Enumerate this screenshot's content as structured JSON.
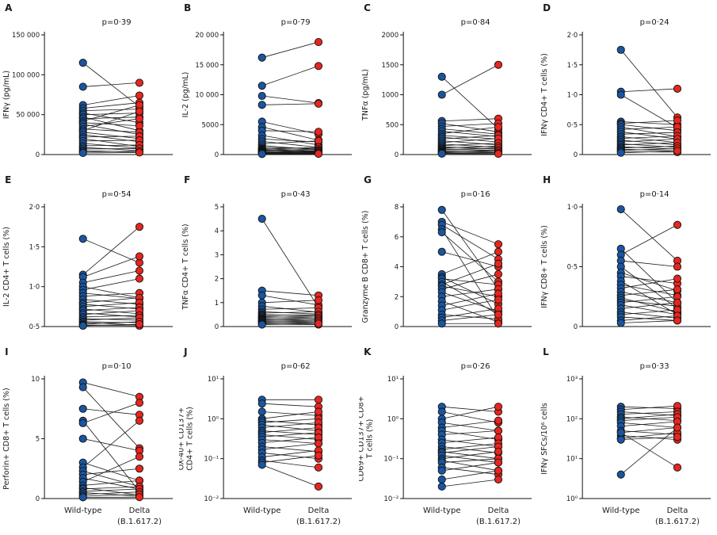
{
  "figure": {
    "x_labels": [
      "Wild-type",
      "Delta"
    ],
    "x_sublabel": "(B.1.617.2)",
    "pair_order": [
      "Wild-type",
      "Delta (B.1.617.2)"
    ],
    "colors": {
      "wildtype": "#1a56a0",
      "delta": "#e6261f",
      "line": "#1a1a1a",
      "axis": "#111111"
    }
  },
  "chart_data": [
    {
      "id": "A",
      "type": "scatter",
      "p_value": "p=0·39",
      "ylabel": "IFNγ (pg/mL)",
      "scale": "linear",
      "ylim": [
        0,
        150000
      ],
      "yticks": [
        0,
        50000,
        100000,
        150000
      ],
      "ytick_labels": [
        "0",
        "50 000",
        "100 000",
        "150 000"
      ],
      "bottom_labels": false,
      "pairs": [
        [
          115000,
          60000
        ],
        [
          85000,
          90000
        ],
        [
          62000,
          74000
        ],
        [
          58000,
          65000
        ],
        [
          55000,
          57000
        ],
        [
          52000,
          40000
        ],
        [
          50000,
          52000
        ],
        [
          47000,
          30000
        ],
        [
          45000,
          47000
        ],
        [
          42000,
          62000
        ],
        [
          40000,
          36000
        ],
        [
          38000,
          25000
        ],
        [
          35000,
          45000
        ],
        [
          32000,
          28000
        ],
        [
          30000,
          54000
        ],
        [
          28000,
          20000
        ],
        [
          25000,
          16000
        ],
        [
          22000,
          23000
        ],
        [
          20000,
          10000
        ],
        [
          17000,
          18000
        ],
        [
          14000,
          8000
        ],
        [
          11000,
          12000
        ],
        [
          9000,
          5000
        ],
        [
          7000,
          7500
        ],
        [
          5000,
          3000
        ],
        [
          3500,
          4200
        ],
        [
          2000,
          2600
        ]
      ]
    },
    {
      "id": "B",
      "type": "scatter",
      "p_value": "p=0·79",
      "ylabel": "IL-2 (pg/mL)",
      "scale": "linear",
      "ylim": [
        0,
        20000
      ],
      "yticks": [
        0,
        5000,
        10000,
        15000,
        20000
      ],
      "ytick_labels": [
        "0",
        "5000",
        "10 000",
        "15 000",
        "20 000"
      ],
      "bottom_labels": false,
      "pairs": [
        [
          16200,
          18800
        ],
        [
          11500,
          14800
        ],
        [
          9800,
          8600
        ],
        [
          8300,
          8500
        ],
        [
          5500,
          3400
        ],
        [
          4600,
          2400
        ],
        [
          4000,
          3800
        ],
        [
          3200,
          1600
        ],
        [
          2600,
          2100
        ],
        [
          2200,
          1200
        ],
        [
          1800,
          2300
        ],
        [
          1500,
          800
        ],
        [
          1200,
          1000
        ],
        [
          1000,
          600
        ],
        [
          900,
          1200
        ],
        [
          800,
          500
        ],
        [
          700,
          900
        ],
        [
          600,
          400
        ],
        [
          500,
          700
        ],
        [
          400,
          300
        ],
        [
          350,
          550
        ],
        [
          300,
          200
        ],
        [
          250,
          380
        ],
        [
          200,
          150
        ],
        [
          150,
          260
        ],
        [
          100,
          120
        ]
      ]
    },
    {
      "id": "C",
      "type": "scatter",
      "p_value": "p=0·84",
      "ylabel": "TNFα (pg/mL)",
      "scale": "linear",
      "ylim": [
        0,
        2000
      ],
      "yticks": [
        0,
        500,
        1000,
        1500,
        2000
      ],
      "ytick_labels": [
        "0",
        "500",
        "1000",
        "1500",
        "2000"
      ],
      "bottom_labels": false,
      "pairs": [
        [
          1000,
          1500
        ],
        [
          1300,
          430
        ],
        [
          560,
          600
        ],
        [
          520,
          380
        ],
        [
          470,
          520
        ],
        [
          430,
          340
        ],
        [
          390,
          300
        ],
        [
          350,
          460
        ],
        [
          320,
          260
        ],
        [
          290,
          210
        ],
        [
          260,
          320
        ],
        [
          230,
          160
        ],
        [
          200,
          270
        ],
        [
          175,
          120
        ],
        [
          150,
          190
        ],
        [
          130,
          90
        ],
        [
          110,
          140
        ],
        [
          95,
          70
        ],
        [
          80,
          110
        ],
        [
          65,
          55
        ],
        [
          50,
          75
        ],
        [
          40,
          32
        ],
        [
          30,
          52
        ],
        [
          22,
          26
        ],
        [
          15,
          12
        ]
      ]
    },
    {
      "id": "D",
      "type": "scatter",
      "p_value": "p=0·24",
      "ylabel": "IFNγ CD4+ T cells (%)",
      "scale": "linear",
      "ylim": [
        0,
        2.0
      ],
      "yticks": [
        0,
        0.5,
        1.0,
        1.5,
        2.0
      ],
      "ytick_labels": [
        "0",
        "0·5",
        "1·0",
        "1·5",
        "2·0"
      ],
      "bottom_labels": false,
      "pairs": [
        [
          1.75,
          0.62
        ],
        [
          1.05,
          1.1
        ],
        [
          1.0,
          0.45
        ],
        [
          0.55,
          0.5
        ],
        [
          0.52,
          0.57
        ],
        [
          0.5,
          0.4
        ],
        [
          0.46,
          0.3
        ],
        [
          0.42,
          0.46
        ],
        [
          0.38,
          0.26
        ],
        [
          0.34,
          0.37
        ],
        [
          0.3,
          0.2
        ],
        [
          0.27,
          0.31
        ],
        [
          0.24,
          0.16
        ],
        [
          0.21,
          0.26
        ],
        [
          0.18,
          0.12
        ],
        [
          0.16,
          0.2
        ],
        [
          0.13,
          0.09
        ],
        [
          0.11,
          0.14
        ],
        [
          0.09,
          0.06
        ],
        [
          0.07,
          0.1
        ],
        [
          0.05,
          0.04
        ],
        [
          0.03,
          0.06
        ]
      ]
    },
    {
      "id": "E",
      "type": "scatter",
      "p_value": "p=0·54",
      "ylabel": "IL-2 CD4+ T cells (%)",
      "scale": "linear",
      "ylim": [
        0.5,
        2.0
      ],
      "yticks": [
        0.5,
        1.0,
        1.5,
        2.0
      ],
      "ytick_labels": [
        "0·5",
        "1·0",
        "1·5",
        "2·0"
      ],
      "bottom_labels": false,
      "pairs": [
        [
          1.6,
          1.3
        ],
        [
          1.15,
          1.75
        ],
        [
          1.12,
          1.38
        ],
        [
          1.05,
          1.2
        ],
        [
          1.0,
          0.86
        ],
        [
          0.96,
          1.1
        ],
        [
          0.92,
          0.85
        ],
        [
          0.88,
          0.92
        ],
        [
          0.84,
          0.78
        ],
        [
          0.8,
          0.86
        ],
        [
          0.78,
          0.72
        ],
        [
          0.75,
          0.8
        ],
        [
          0.72,
          0.66
        ],
        [
          0.7,
          0.74
        ],
        [
          0.67,
          0.62
        ],
        [
          0.65,
          0.7
        ],
        [
          0.62,
          0.64
        ],
        [
          0.6,
          0.58
        ],
        [
          0.58,
          0.61
        ],
        [
          0.56,
          0.55
        ],
        [
          0.55,
          0.52
        ],
        [
          0.53,
          0.56
        ],
        [
          0.52,
          0.51
        ],
        [
          0.51,
          0.53
        ]
      ]
    },
    {
      "id": "F",
      "type": "scatter",
      "p_value": "p=0·43",
      "ylabel": "TNFα CD4+ T cells (%)",
      "scale": "linear",
      "ylim": [
        0,
        5
      ],
      "yticks": [
        0,
        1,
        2,
        3,
        4,
        5
      ],
      "ytick_labels": [
        "0",
        "1",
        "2",
        "3",
        "4",
        "5"
      ],
      "bottom_labels": false,
      "pairs": [
        [
          4.5,
          0.8
        ],
        [
          1.5,
          1.3
        ],
        [
          1.3,
          0.9
        ],
        [
          1.0,
          1.1
        ],
        [
          0.85,
          0.6
        ],
        [
          0.72,
          0.78
        ],
        [
          0.62,
          0.52
        ],
        [
          0.56,
          0.62
        ],
        [
          0.5,
          0.44
        ],
        [
          0.46,
          0.5
        ],
        [
          0.42,
          0.36
        ],
        [
          0.38,
          0.44
        ],
        [
          0.34,
          0.28
        ],
        [
          0.31,
          0.36
        ],
        [
          0.28,
          0.23
        ],
        [
          0.25,
          0.3
        ],
        [
          0.22,
          0.18
        ],
        [
          0.19,
          0.24
        ],
        [
          0.16,
          0.12
        ],
        [
          0.13,
          0.18
        ],
        [
          0.1,
          0.08
        ],
        [
          0.08,
          0.12
        ]
      ]
    },
    {
      "id": "G",
      "type": "scatter",
      "p_value": "p=0·16",
      "ylabel": "Granzyme B CD8+ T cells (%)",
      "scale": "linear",
      "ylim": [
        0,
        8
      ],
      "yticks": [
        0,
        2,
        4,
        6,
        8
      ],
      "ytick_labels": [
        "0",
        "2",
        "4",
        "6",
        "8"
      ],
      "bottom_labels": false,
      "pairs": [
        [
          7.8,
          2.5
        ],
        [
          7.0,
          5.5
        ],
        [
          6.8,
          4.5
        ],
        [
          6.5,
          0.5
        ],
        [
          6.3,
          3.0
        ],
        [
          5.0,
          4.0
        ],
        [
          3.5,
          5.0
        ],
        [
          3.3,
          1.5
        ],
        [
          3.2,
          2.8
        ],
        [
          3.0,
          0.8
        ],
        [
          2.8,
          4.2
        ],
        [
          2.7,
          2.0
        ],
        [
          2.5,
          3.5
        ],
        [
          2.3,
          1.0
        ],
        [
          2.0,
          2.5
        ],
        [
          1.7,
          0.3
        ],
        [
          1.4,
          2.2
        ],
        [
          1.1,
          1.8
        ],
        [
          0.8,
          0.5
        ],
        [
          0.6,
          1.2
        ],
        [
          0.4,
          0.8
        ],
        [
          0.2,
          0.2
        ]
      ]
    },
    {
      "id": "H",
      "type": "scatter",
      "p_value": "p=0·14",
      "ylabel": "IFNγ CD8+ T cells (%)",
      "scale": "linear",
      "ylim": [
        0,
        1.0
      ],
      "yticks": [
        0,
        0.5,
        1.0
      ],
      "ytick_labels": [
        "0",
        "0·5",
        "1·0"
      ],
      "bottom_labels": false,
      "pairs": [
        [
          0.98,
          0.55
        ],
        [
          0.65,
          0.2
        ],
        [
          0.6,
          0.85
        ],
        [
          0.55,
          0.5
        ],
        [
          0.5,
          0.15
        ],
        [
          0.45,
          0.3
        ],
        [
          0.42,
          0.36
        ],
        [
          0.38,
          0.1
        ],
        [
          0.35,
          0.26
        ],
        [
          0.32,
          0.4
        ],
        [
          0.29,
          0.2
        ],
        [
          0.26,
          0.31
        ],
        [
          0.24,
          0.12
        ],
        [
          0.22,
          0.17
        ],
        [
          0.2,
          0.25
        ],
        [
          0.18,
          0.1
        ],
        [
          0.15,
          0.2
        ],
        [
          0.12,
          0.07
        ],
        [
          0.1,
          0.14
        ],
        [
          0.08,
          0.05
        ],
        [
          0.05,
          0.09
        ],
        [
          0.03,
          0.05
        ]
      ]
    },
    {
      "id": "I",
      "type": "scatter",
      "p_value": "p=0·10",
      "ylabel": "Perforin+ CD8+ T cells (%)",
      "scale": "linear",
      "ylim": [
        0,
        10
      ],
      "yticks": [
        0,
        5,
        10
      ],
      "ytick_labels": [
        "0",
        "5",
        "10"
      ],
      "bottom_labels": true,
      "pairs": [
        [
          9.7,
          8.5
        ],
        [
          9.3,
          4.2
        ],
        [
          7.5,
          7.0
        ],
        [
          6.5,
          0.6
        ],
        [
          6.3,
          8.0
        ],
        [
          5.0,
          4.0
        ],
        [
          3.0,
          1.5
        ],
        [
          2.6,
          6.5
        ],
        [
          2.3,
          1.0
        ],
        [
          2.0,
          2.5
        ],
        [
          1.7,
          0.8
        ],
        [
          1.4,
          3.5
        ],
        [
          1.1,
          1.5
        ],
        [
          0.9,
          0.3
        ],
        [
          0.8,
          1.0
        ],
        [
          0.6,
          0.8
        ],
        [
          0.5,
          0.2
        ],
        [
          0.35,
          0.55
        ],
        [
          0.2,
          0.35
        ],
        [
          0.1,
          0.12
        ]
      ]
    },
    {
      "id": "J",
      "type": "scatter",
      "p_value": "p=0·62",
      "ylabel": [
        "OX-40+ CD137+",
        "CD4+ T cells (%)"
      ],
      "scale": "log",
      "ylim": [
        0.01,
        10
      ],
      "yticks": [
        0.01,
        0.1,
        1,
        10
      ],
      "ytick_labels": [
        "10⁻²",
        "10⁻¹",
        "10⁰",
        "10¹"
      ],
      "bottom_labels": true,
      "pairs": [
        [
          3.0,
          3.0
        ],
        [
          2.4,
          2.0
        ],
        [
          1.5,
          1.2
        ],
        [
          1.0,
          1.5
        ],
        [
          0.9,
          0.7
        ],
        [
          0.8,
          1.0
        ],
        [
          0.7,
          0.5
        ],
        [
          0.6,
          0.8
        ],
        [
          0.5,
          0.4
        ],
        [
          0.45,
          0.6
        ],
        [
          0.4,
          0.3
        ],
        [
          0.35,
          0.45
        ],
        [
          0.3,
          0.24
        ],
        [
          0.25,
          0.34
        ],
        [
          0.2,
          0.15
        ],
        [
          0.17,
          0.24
        ],
        [
          0.14,
          0.1
        ],
        [
          0.11,
          0.16
        ],
        [
          0.09,
          0.06
        ],
        [
          0.08,
          0.12
        ],
        [
          0.07,
          0.02
        ]
      ]
    },
    {
      "id": "K",
      "type": "scatter",
      "p_value": "p=0·26",
      "ylabel": [
        "CD69+ CD137+ CD8+",
        "T cells (%)"
      ],
      "scale": "log",
      "ylim": [
        0.01,
        10
      ],
      "yticks": [
        0.01,
        0.1,
        1,
        10
      ],
      "ytick_labels": [
        "10⁻²",
        "10⁻¹",
        "10⁰",
        "10¹"
      ],
      "bottom_labels": true,
      "pairs": [
        [
          2.0,
          1.5
        ],
        [
          1.5,
          0.8
        ],
        [
          1.0,
          2.0
        ],
        [
          0.8,
          0.5
        ],
        [
          0.6,
          0.9
        ],
        [
          0.5,
          0.3
        ],
        [
          0.4,
          0.5
        ],
        [
          0.3,
          0.2
        ],
        [
          0.25,
          0.34
        ],
        [
          0.2,
          0.14
        ],
        [
          0.17,
          0.24
        ],
        [
          0.15,
          0.1
        ],
        [
          0.14,
          0.2
        ],
        [
          0.12,
          0.08
        ],
        [
          0.1,
          0.15
        ],
        [
          0.09,
          0.05
        ],
        [
          0.08,
          0.1
        ],
        [
          0.06,
          0.04
        ],
        [
          0.05,
          0.08
        ],
        [
          0.03,
          0.05
        ],
        [
          0.02,
          0.03
        ]
      ]
    },
    {
      "id": "L",
      "type": "scatter",
      "p_value": "p=0·33",
      "ylabel": "IFNγ SFCs/10⁶ cells",
      "scale": "log",
      "ylim": [
        1,
        1000
      ],
      "yticks": [
        1,
        10,
        100,
        1000
      ],
      "ytick_labels": [
        "10⁰",
        "10¹",
        "10²",
        "10³"
      ],
      "bottom_labels": true,
      "pairs": [
        [
          200,
          180
        ],
        [
          170,
          210
        ],
        [
          150,
          120
        ],
        [
          130,
          150
        ],
        [
          110,
          90
        ],
        [
          100,
          130
        ],
        [
          90,
          110
        ],
        [
          80,
          60
        ],
        [
          65,
          85
        ],
        [
          50,
          40
        ],
        [
          45,
          60
        ],
        [
          38,
          30
        ],
        [
          32,
          45
        ],
        [
          30,
          35
        ],
        [
          45,
          6
        ],
        [
          4,
          60
        ]
      ]
    }
  ]
}
